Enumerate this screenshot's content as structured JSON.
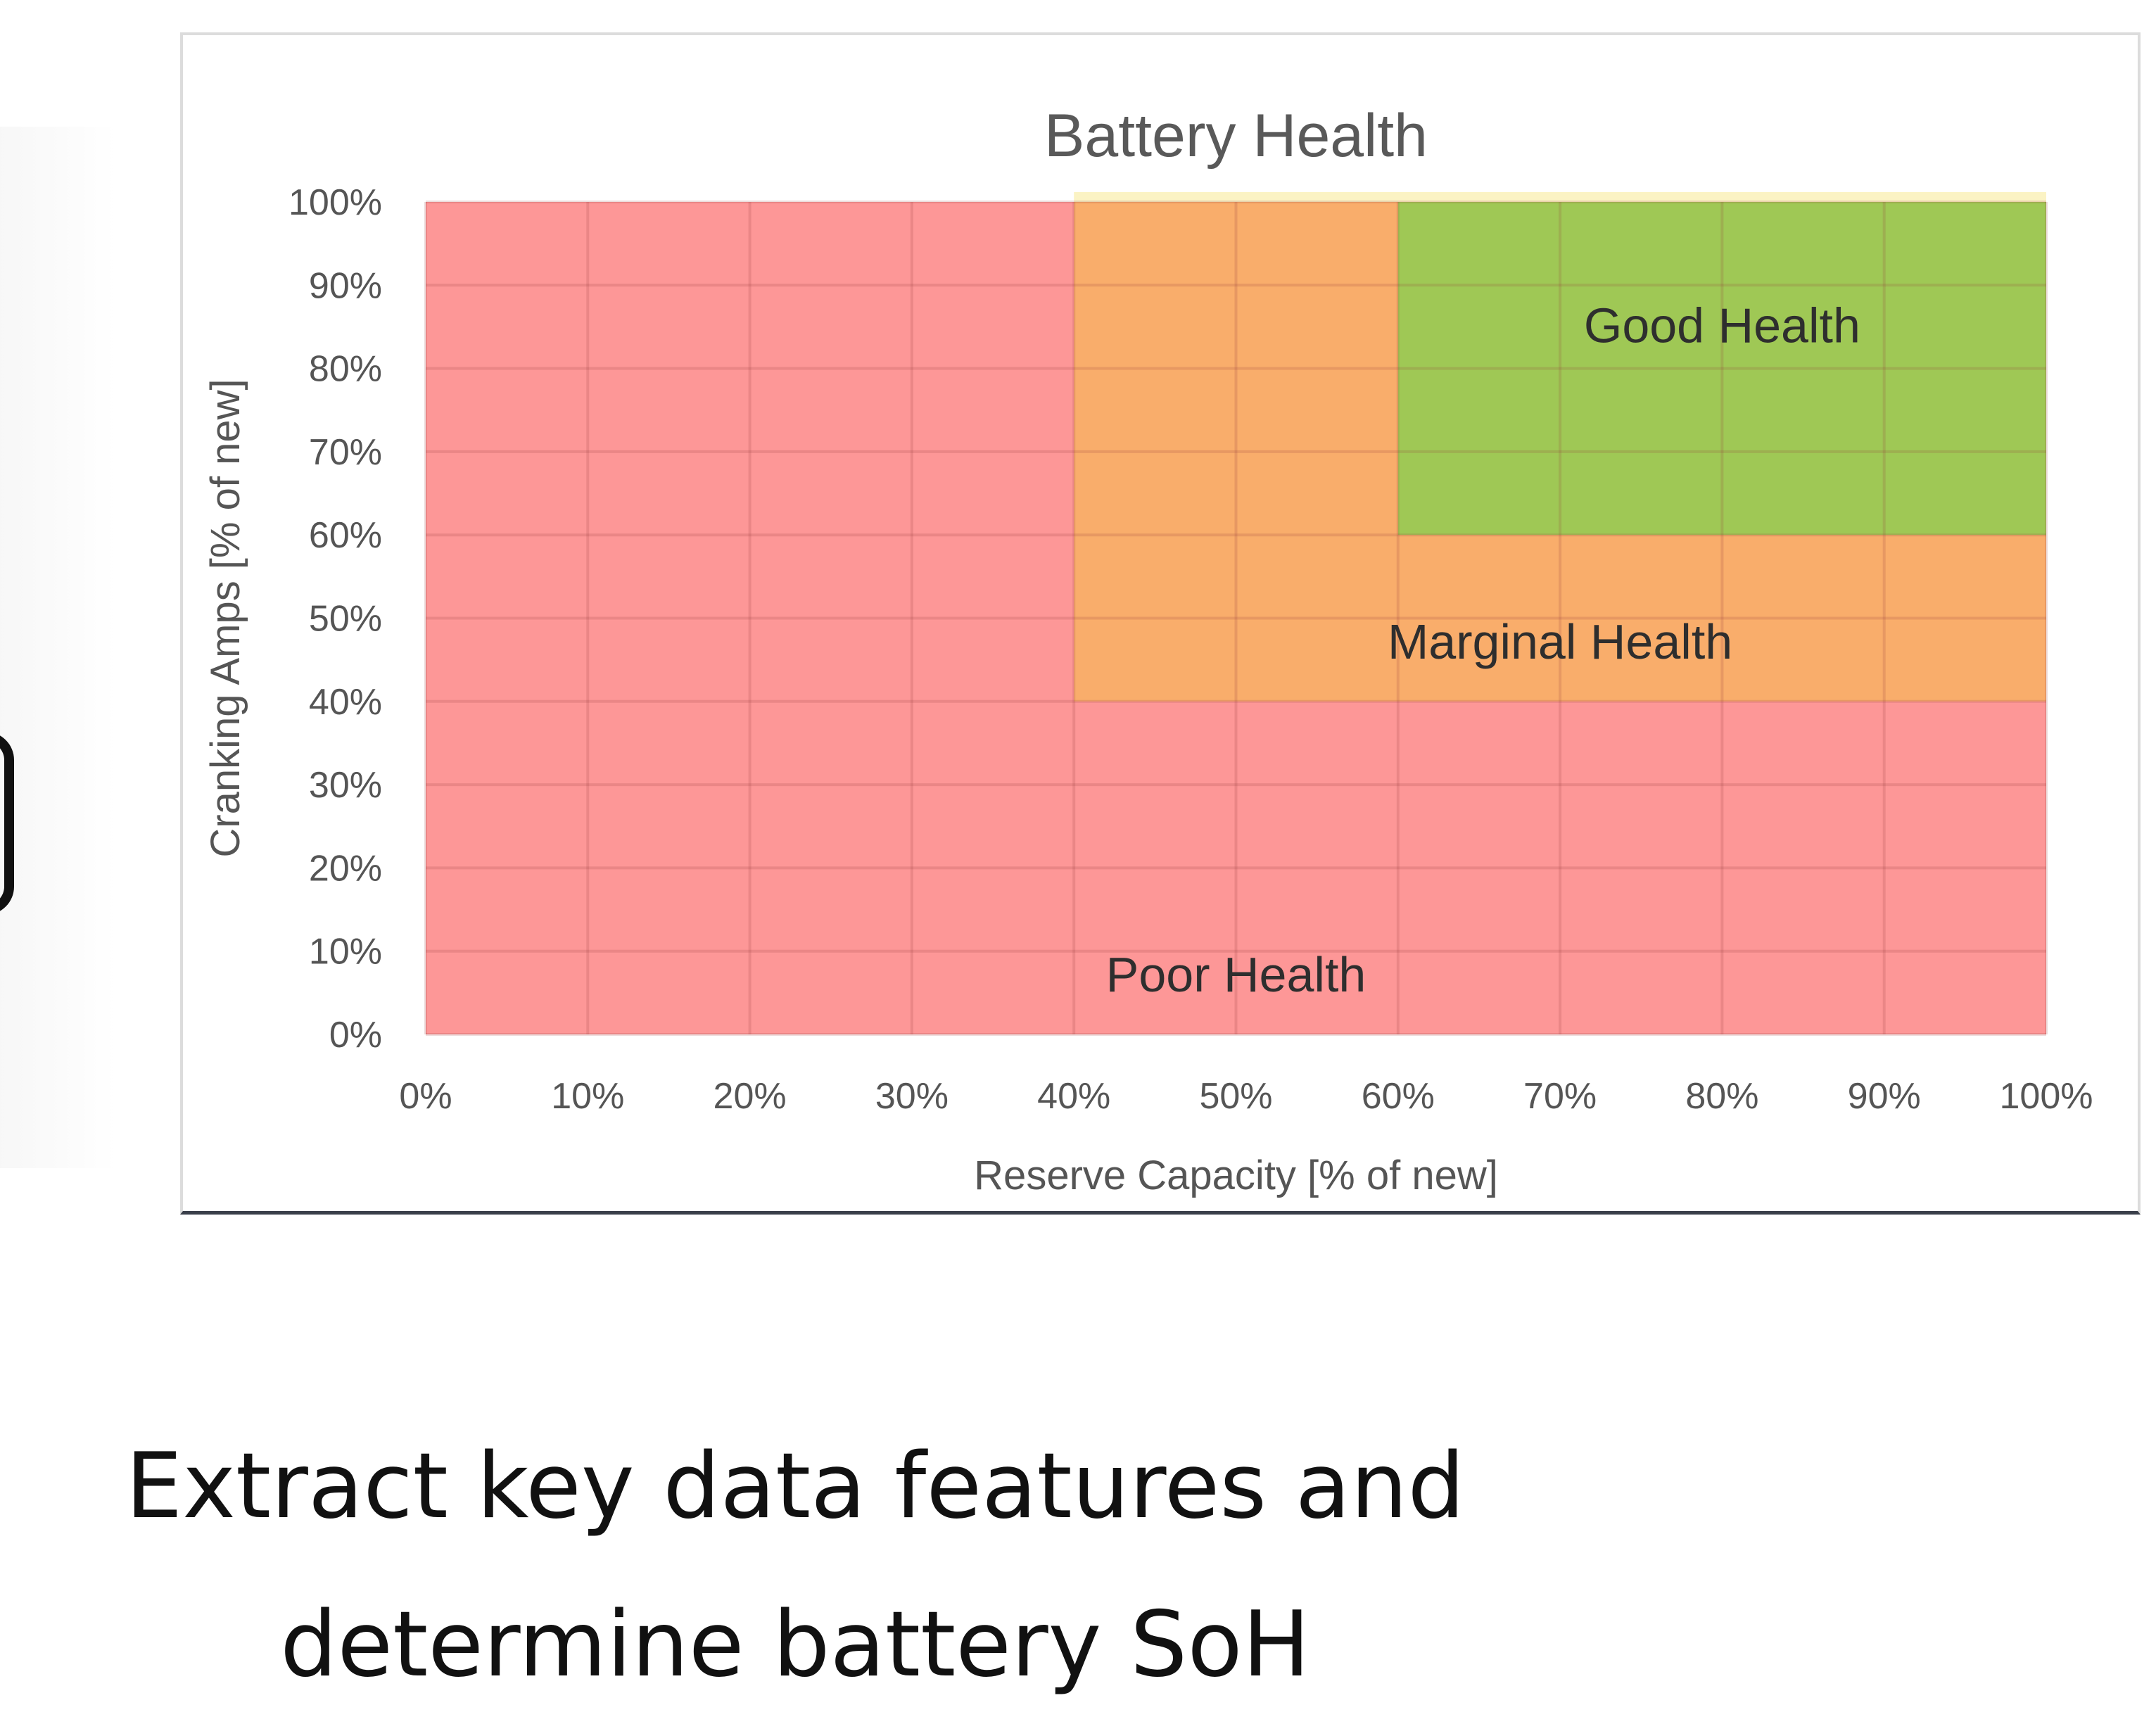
{
  "chart_data": {
    "type": "heatmap",
    "title": "Battery Health",
    "xlabel": "Reserve Capacity [% of new]",
    "ylabel": "Cranking Amps [% of new]",
    "xlim": [
      0,
      100
    ],
    "ylim": [
      0,
      100
    ],
    "x_ticks": [
      "0%",
      "10%",
      "20%",
      "30%",
      "40%",
      "50%",
      "60%",
      "70%",
      "80%",
      "90%",
      "100%"
    ],
    "y_ticks": [
      "0%",
      "10%",
      "20%",
      "30%",
      "40%",
      "50%",
      "60%",
      "70%",
      "80%",
      "90%",
      "100%"
    ],
    "grid": true,
    "regions": [
      {
        "name": "Poor Health",
        "x_range": [
          0,
          100
        ],
        "y_range": [
          0,
          100
        ],
        "color": "#fd9797"
      },
      {
        "name": "Marginal Health",
        "x_range": [
          40,
          100
        ],
        "y_range": [
          40,
          100
        ],
        "color": "#f9ad6b"
      },
      {
        "name": "Good Health",
        "x_range": [
          60,
          100
        ],
        "y_range": [
          60,
          100
        ],
        "color": "#9fc855"
      }
    ],
    "annotations": [
      {
        "text": "Good Health",
        "x": 80,
        "y": 85
      },
      {
        "text": "Marginal Health",
        "x": 70,
        "y": 47
      },
      {
        "text": "Poor Health",
        "x": 50,
        "y": 7
      }
    ]
  },
  "caption": {
    "line1": "Extract key data features and",
    "line2": "determine battery SoH"
  }
}
